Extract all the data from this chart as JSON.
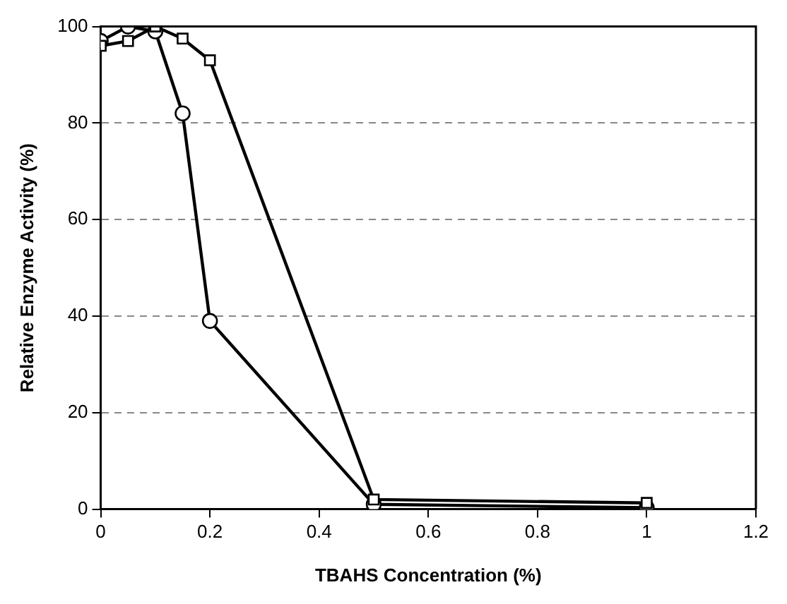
{
  "chart_data": {
    "type": "line",
    "xlabel": "TBAHS Concentration (%)",
    "ylabel": "Relative Enzyme Activity (%)",
    "x": [
      0,
      0.05,
      0.1,
      0.15,
      0.2,
      0.5,
      1
    ],
    "series": [
      {
        "color": "#000000",
        "marker": "circle",
        "values": [
          97,
          100,
          99,
          82,
          39,
          1,
          0.3
        ]
      },
      {
        "color": "#000000",
        "marker": "square",
        "values": [
          96,
          97,
          100,
          97.5,
          93,
          2,
          1.3
        ]
      }
    ],
    "xlim": [
      0,
      1.2
    ],
    "xticks": [
      0,
      0.2,
      0.4,
      0.6,
      0.8,
      1,
      1.2
    ],
    "ylim": [
      0,
      100
    ],
    "yticks": [
      0,
      20,
      40,
      60,
      80,
      100
    ],
    "grid": "y",
    "legend": false,
    "line_style": "solid"
  }
}
